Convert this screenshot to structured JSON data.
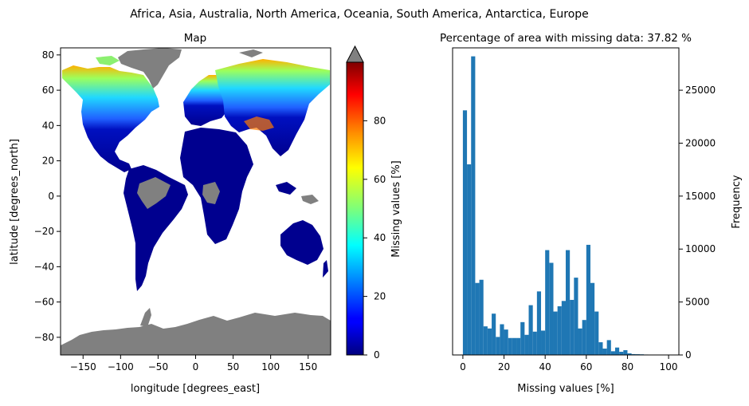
{
  "figure": {
    "suptitle": "Africa, Asia, Australia, North America, Oceania, South America, Antarctica, Europe"
  },
  "map": {
    "title": "Map",
    "xlabel": "longitude [degrees_east]",
    "ylabel": "latitude [degrees_north]",
    "xticks": [
      -150,
      -100,
      -50,
      0,
      50,
      100,
      150
    ],
    "yticks": [
      80,
      60,
      40,
      20,
      0,
      -20,
      -40,
      -60,
      -80
    ],
    "xlim": [
      -180,
      180
    ],
    "ylim": [
      -90,
      84
    ],
    "colorbar": {
      "label": "Missing values [%]",
      "ticks": [
        0,
        20,
        40,
        60,
        80
      ],
      "range": [
        0,
        100
      ],
      "colormap": "jet",
      "extend_color": "#808080",
      "nodata_color": "#808080"
    }
  },
  "chart_data": {
    "type": "bar",
    "title": "Percentage of area with missing data: 37.82 %",
    "xlabel": "Missing values [%]",
    "ylabel": "Frequency",
    "xlim": [
      -5,
      105
    ],
    "ylim": [
      0,
      29000
    ],
    "xticks": [
      0,
      20,
      40,
      60,
      80,
      100
    ],
    "yticks": [
      0,
      5000,
      10000,
      15000,
      20000,
      25000
    ],
    "bin_width": 2,
    "bin_starts": [
      0,
      2,
      4,
      6,
      8,
      10,
      12,
      14,
      16,
      18,
      20,
      22,
      24,
      26,
      28,
      30,
      32,
      34,
      36,
      38,
      40,
      42,
      44,
      46,
      48,
      50,
      52,
      54,
      56,
      58,
      60,
      62,
      64,
      66,
      68,
      70,
      72,
      74,
      76,
      78,
      80,
      82,
      84,
      86,
      88,
      90,
      92,
      94,
      96,
      98
    ],
    "values": [
      23100,
      18000,
      28200,
      6800,
      7100,
      2700,
      2500,
      3900,
      1700,
      2900,
      2400,
      1600,
      1600,
      1600,
      3100,
      1900,
      4700,
      2200,
      6000,
      2300,
      9900,
      8700,
      4100,
      4600,
      5100,
      9900,
      5200,
      7300,
      2500,
      3300,
      10400,
      6800,
      4100,
      1200,
      600,
      1400,
      350,
      700,
      300,
      450,
      150,
      80,
      70,
      60,
      40,
      30,
      20,
      15,
      10,
      5
    ],
    "bar_color": "#1f77b4"
  }
}
